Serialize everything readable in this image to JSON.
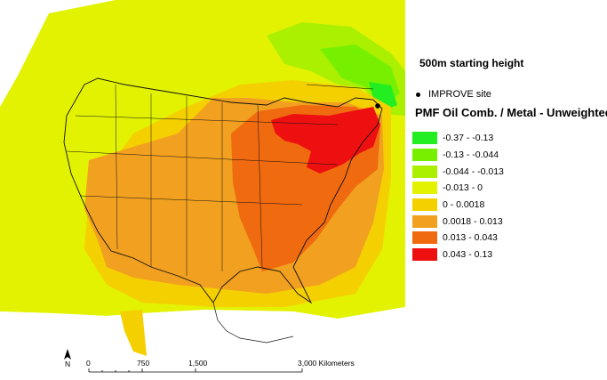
{
  "legend": {
    "subtitle": "500m starting height",
    "site_label": "IMPROVE site",
    "title": "PMF Oil Comb. / Metal - Unweighted",
    "classes": [
      {
        "label": "-0.37 - -0.13",
        "color": "#22ee22"
      },
      {
        "label": "-0.13 - -0.044",
        "color": "#77f000"
      },
      {
        "label": "-0.044 - -0.013",
        "color": "#aaf000"
      },
      {
        "label": "-0.013 - 0",
        "color": "#e2f200"
      },
      {
        "label": "0 - 0.0018",
        "color": "#f5d000"
      },
      {
        "label": "0.0018 - 0.013",
        "color": "#f2a020"
      },
      {
        "label": "0.013 - 0.043",
        "color": "#f06a10"
      },
      {
        "label": "0.043 - 0.13",
        "color": "#ee1010"
      }
    ]
  },
  "scalebar": {
    "ticks": [
      "0",
      "750",
      "1,500",
      "3,000 Kilometers"
    ]
  },
  "north_label": "N"
}
